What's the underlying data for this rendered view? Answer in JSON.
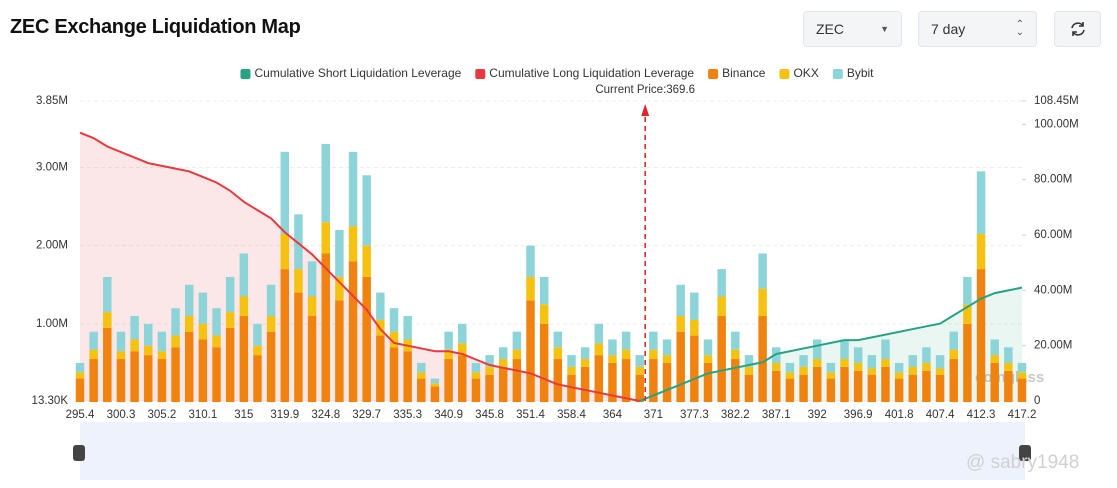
{
  "header": {
    "title": "ZEC Exchange Liquidation Map",
    "symbol": "ZEC",
    "period": "7 day"
  },
  "watermark": {
    "brand": "coinglass",
    "handle": "@ sabry1948"
  },
  "chart_data": {
    "type": "bar",
    "stacked": true,
    "categories": [
      "295.4",
      null,
      null,
      "300.3",
      null,
      null,
      "305.2",
      null,
      null,
      "310.1",
      null,
      null,
      "315",
      null,
      null,
      "319.9",
      null,
      null,
      "324.8",
      null,
      null,
      "329.7",
      null,
      null,
      "335.3",
      null,
      null,
      "340.9",
      null,
      null,
      "345.8",
      null,
      null,
      "351.4",
      null,
      null,
      "358.4",
      null,
      null,
      "364",
      null,
      null,
      "371",
      null,
      null,
      "377.3",
      null,
      null,
      "382.2",
      null,
      null,
      "387.1",
      null,
      null,
      "392",
      null,
      null,
      "396.9",
      null,
      null,
      "401.8",
      null,
      null,
      "407.4",
      null,
      null,
      "412.3",
      null,
      null,
      "417.2"
    ],
    "annotation": {
      "label": "Current Price:",
      "value": 369.6,
      "color": "#e0262d"
    },
    "ylim": [
      0.0133,
      3.85
    ],
    "yticks": [
      {
        "value": 0.0133,
        "label": "13.30K"
      },
      {
        "value": 1,
        "label": "1.00M"
      },
      {
        "value": 2,
        "label": "2.00M"
      },
      {
        "value": 3,
        "label": "3.00M"
      },
      {
        "value": 3.85,
        "label": "3.85M"
      }
    ],
    "y2lim": [
      0,
      108.45
    ],
    "y2ticks": [
      0,
      {
        "value": 20,
        "label": "20.00M"
      },
      {
        "value": 40,
        "label": "40.00M"
      },
      {
        "value": 60,
        "label": "60.00M"
      },
      {
        "value": 80,
        "label": "80.00M"
      },
      {
        "value": 100,
        "label": "100.00M"
      },
      {
        "value": 108.45,
        "label": "108.45M"
      }
    ],
    "grid": true,
    "series": [
      {
        "name": "Cumulative Short Liquidation Leverage",
        "type": "line",
        "axis": "y2",
        "color": "#25a383",
        "fill": "rgba(37,163,131,0.1)",
        "values": [
          null,
          null,
          null,
          null,
          null,
          null,
          null,
          null,
          null,
          null,
          null,
          null,
          null,
          null,
          null,
          null,
          null,
          null,
          null,
          null,
          null,
          null,
          null,
          null,
          null,
          null,
          null,
          null,
          null,
          null,
          null,
          null,
          null,
          null,
          null,
          null,
          null,
          null,
          null,
          null,
          null,
          0,
          2,
          4,
          6,
          8,
          10,
          11,
          12,
          13,
          14,
          17,
          18,
          19,
          20,
          21,
          22,
          22,
          23,
          24,
          25,
          26,
          27,
          28,
          31,
          34,
          37,
          39,
          40,
          41
        ]
      },
      {
        "name": "Cumulative Long Liquidation Leverage",
        "type": "line",
        "axis": "y2",
        "color": "#e8393e",
        "fill": "rgba(232,57,62,0.12)",
        "values": [
          97,
          95,
          92,
          90,
          88,
          86,
          85,
          84,
          83,
          81,
          79,
          76,
          72,
          69,
          66,
          61,
          57,
          53,
          48,
          43,
          38,
          33,
          26,
          21,
          20,
          19,
          18,
          18,
          17,
          15,
          13,
          12,
          11,
          10,
          8,
          6,
          5,
          4,
          3,
          2,
          1,
          0,
          null,
          null,
          null,
          null,
          null,
          null,
          null,
          null,
          null,
          null,
          null,
          null,
          null,
          null,
          null,
          null,
          null,
          null,
          null,
          null,
          null,
          null,
          null,
          null,
          null,
          null,
          null,
          null
        ]
      },
      {
        "name": "Binance",
        "color": "#f0830f",
        "values": [
          0.3,
          0.55,
          0.95,
          0.55,
          0.65,
          0.6,
          0.55,
          0.7,
          0.9,
          0.8,
          0.7,
          0.95,
          1.1,
          0.6,
          0.9,
          1.7,
          1.4,
          1.1,
          1.9,
          1.3,
          1.8,
          1.6,
          0.85,
          0.7,
          0.65,
          0.3,
          0.2,
          0.55,
          0.6,
          0.3,
          0.35,
          0.45,
          0.55,
          1.3,
          1.0,
          0.55,
          0.35,
          0.45,
          0.6,
          0.5,
          0.55,
          0.35,
          0.55,
          0.5,
          0.9,
          0.85,
          0.5,
          1.1,
          0.55,
          0.35,
          1.1,
          0.4,
          0.3,
          0.35,
          0.45,
          0.3,
          0.45,
          0.4,
          0.35,
          0.45,
          0.3,
          0.35,
          0.4,
          0.35,
          0.55,
          1.0,
          1.7,
          0.5,
          0.4,
          0.3
        ]
      },
      {
        "name": "OKX",
        "color": "#f5c211",
        "values": [
          0.08,
          0.12,
          0.2,
          0.1,
          0.15,
          0.12,
          0.1,
          0.15,
          0.2,
          0.2,
          0.15,
          0.2,
          0.25,
          0.12,
          0.2,
          0.45,
          0.3,
          0.25,
          0.4,
          0.3,
          0.45,
          0.4,
          0.2,
          0.2,
          0.15,
          0.08,
          0.04,
          0.12,
          0.15,
          0.08,
          0.1,
          0.1,
          0.12,
          0.3,
          0.25,
          0.15,
          0.1,
          0.1,
          0.15,
          0.1,
          0.12,
          0.1,
          0.12,
          0.1,
          0.2,
          0.2,
          0.1,
          0.25,
          0.12,
          0.1,
          0.35,
          0.1,
          0.08,
          0.1,
          0.1,
          0.08,
          0.1,
          0.1,
          0.08,
          0.1,
          0.08,
          0.1,
          0.1,
          0.08,
          0.12,
          0.25,
          0.45,
          0.1,
          0.1,
          0.08
        ]
      },
      {
        "name": "Bybit",
        "color": "#8dd4d8",
        "values": [
          0.12,
          0.23,
          0.45,
          0.25,
          0.3,
          0.28,
          0.25,
          0.35,
          0.4,
          0.4,
          0.35,
          0.45,
          0.55,
          0.28,
          0.4,
          1.05,
          0.7,
          0.45,
          1.0,
          0.6,
          0.95,
          0.9,
          0.35,
          0.3,
          0.3,
          0.12,
          0.06,
          0.23,
          0.25,
          0.12,
          0.15,
          0.15,
          0.23,
          0.4,
          0.35,
          0.2,
          0.15,
          0.15,
          0.25,
          0.2,
          0.23,
          0.15,
          0.23,
          0.2,
          0.4,
          0.35,
          0.2,
          0.35,
          0.23,
          0.15,
          0.45,
          0.2,
          0.12,
          0.15,
          0.25,
          0.12,
          0.25,
          0.2,
          0.17,
          0.25,
          0.12,
          0.15,
          0.2,
          0.17,
          0.23,
          0.35,
          0.8,
          0.2,
          0.2,
          0.12
        ]
      }
    ]
  }
}
